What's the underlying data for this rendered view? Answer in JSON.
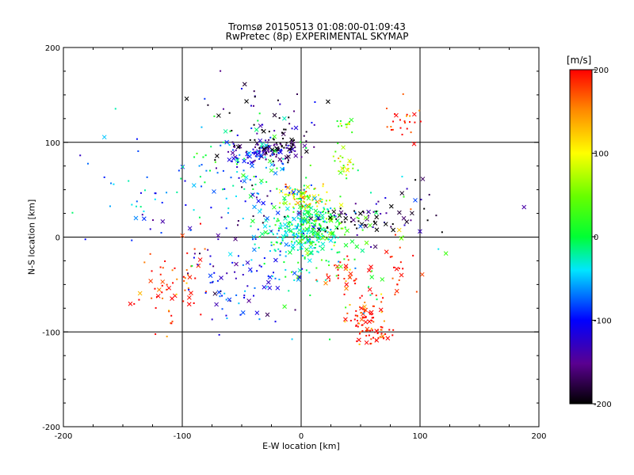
{
  "chart_data": {
    "type": "scatter",
    "title": "Tromsø 20150513 01:08:00-01:09:43",
    "subtitle": "RwPretec (8p) EXPERIMENTAL SKYMAP",
    "xlabel": "E-W location [km]",
    "ylabel": "N-S location [km]",
    "xlim": [
      -200,
      200
    ],
    "ylim": [
      -200,
      200
    ],
    "xticks": [
      "-200",
      "-100",
      "0",
      "100",
      "200"
    ],
    "yticks": [
      "-200",
      "-100",
      "0",
      "100",
      "200"
    ],
    "grid": true,
    "colorbar": {
      "label": "[m/s]",
      "range": [
        -200,
        200
      ],
      "ticks": [
        "-200",
        "-100",
        "0",
        "100",
        "200"
      ],
      "colormap": "rainbow (black-purple-blue-cyan-green-yellow-red)"
    },
    "marker_types": [
      "dot",
      "x"
    ],
    "clusters": [
      {
        "cx": -38,
        "cy": 88,
        "sx": 12,
        "sy": 6,
        "v": -130,
        "n": 90
      },
      {
        "cx": -15,
        "cy": 95,
        "sx": 10,
        "sy": 8,
        "v": -190,
        "n": 60
      },
      {
        "cx": 5,
        "cy": 42,
        "sx": 10,
        "sy": 6,
        "v": 110,
        "n": 70
      },
      {
        "cx": 0,
        "cy": 5,
        "sx": 14,
        "sy": 18,
        "v": -20,
        "n": 260
      },
      {
        "cx": 15,
        "cy": 15,
        "sx": 10,
        "sy": 8,
        "v": 20,
        "n": 60
      },
      {
        "cx": 55,
        "cy": -85,
        "sx": 8,
        "sy": 12,
        "v": 200,
        "n": 70
      },
      {
        "cx": 65,
        "cy": -105,
        "sx": 7,
        "sy": 5,
        "v": 200,
        "n": 25
      },
      {
        "cx": 40,
        "cy": -40,
        "sx": 10,
        "sy": 8,
        "v": 200,
        "n": 30
      },
      {
        "cx": 35,
        "cy": 80,
        "sx": 5,
        "sy": 8,
        "v": 80,
        "n": 25
      },
      {
        "cx": 35,
        "cy": 120,
        "sx": 4,
        "sy": 5,
        "v": 40,
        "n": 15
      },
      {
        "cx": 45,
        "cy": 20,
        "sx": 20,
        "sy": 8,
        "v": -200,
        "n": 50
      },
      {
        "cx": -50,
        "cy": 70,
        "sx": 25,
        "sy": 25,
        "v": -40,
        "n": 90
      },
      {
        "cx": -115,
        "cy": -65,
        "sx": 12,
        "sy": 18,
        "v": 190,
        "n": 40
      },
      {
        "cx": -95,
        "cy": -30,
        "sx": 10,
        "sy": 20,
        "v": 180,
        "n": 25
      },
      {
        "cx": -60,
        "cy": -50,
        "sx": 20,
        "sy": 20,
        "v": -100,
        "n": 60
      },
      {
        "cx": -30,
        "cy": 125,
        "sx": 25,
        "sy": 20,
        "v": -180,
        "n": 50
      },
      {
        "cx": 85,
        "cy": 120,
        "sx": 10,
        "sy": 12,
        "v": 200,
        "n": 25
      },
      {
        "cx": -140,
        "cy": 40,
        "sx": 30,
        "sy": 40,
        "v": -60,
        "n": 40
      },
      {
        "cx": 80,
        "cy": -30,
        "sx": 12,
        "sy": 20,
        "v": 190,
        "n": 25
      },
      {
        "cx": 20,
        "cy": -10,
        "sx": 35,
        "sy": 35,
        "v": 0,
        "n": 90
      },
      {
        "cx": -40,
        "cy": 0,
        "sx": 30,
        "sy": 40,
        "v": -120,
        "n": 60
      },
      {
        "cx": 80,
        "cy": 30,
        "sx": 30,
        "sy": 20,
        "v": -150,
        "n": 30
      }
    ]
  }
}
